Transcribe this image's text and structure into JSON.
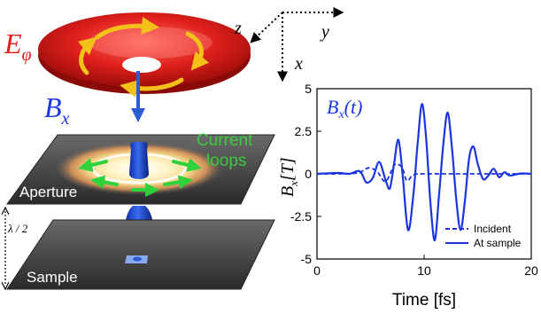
{
  "labels": {
    "e_phi_main": "E",
    "e_phi_sub": "φ",
    "b_x_main": "B",
    "b_x_sub": "x",
    "current_loops_line1": "Current",
    "current_loops_line2": "loops",
    "aperture": "Aperture",
    "sample": "Sample",
    "lambda_half": "λ / 2"
  },
  "axes3d": {
    "z": "z",
    "y": "y",
    "x": "x"
  },
  "colors": {
    "e_field_red": "#e0201c",
    "arrow_yellow": "#f2c21a",
    "b_arrow_blue": "#2a5bd7",
    "current_green": "#2fd23a",
    "current_label_green": "#3acb3a",
    "plot_blue": "#1a35e0",
    "plane_dark": "#3a3a3a"
  },
  "chart_data": {
    "type": "line",
    "title": "B_x(t)",
    "title_main": "B",
    "title_sub": "x",
    "title_tail": "(t)",
    "xlabel": "Time [fs]",
    "ylabel_main": "B",
    "ylabel_sub": "x",
    "ylabel_tail": "[T]",
    "xlim": [
      0,
      20
    ],
    "ylim": [
      -5,
      5
    ],
    "xticks": [
      0,
      10,
      20
    ],
    "yticks": [
      5,
      2.5,
      0,
      -2.5,
      -5
    ],
    "ytick_labels": [
      "5",
      "2.5",
      "0",
      "-2.5",
      "-5"
    ],
    "xtick_labels": [
      "0",
      "10",
      "20"
    ],
    "legend_position": "bottom-right",
    "series": [
      {
        "name": "Incident",
        "style": "dashed",
        "x": [
          0,
          2,
          3,
          4,
          4.8,
          5.6,
          6.4,
          7.2,
          7.6,
          8.0,
          8.4,
          9,
          10,
          12,
          14,
          16,
          18,
          20
        ],
        "y": [
          0,
          0,
          0.02,
          0.08,
          0.35,
          0.15,
          -0.45,
          0.5,
          0.55,
          0.3,
          -0.4,
          -0.05,
          0,
          0,
          0,
          0,
          0,
          0
        ]
      },
      {
        "name": "At sample",
        "style": "solid",
        "x": [
          0,
          2,
          3,
          4,
          4.6,
          5.2,
          5.8,
          6.4,
          6.8,
          7.2,
          7.6,
          8.0,
          8.5,
          9.0,
          9.4,
          9.8,
          10.2,
          10.6,
          11.0,
          11.4,
          11.8,
          12.2,
          12.6,
          13.0,
          13.4,
          13.8,
          14.2,
          14.6,
          15.0,
          15.5,
          16,
          16.5,
          17,
          17.5,
          18,
          19,
          20
        ],
        "y": [
          0,
          0.05,
          0,
          0.15,
          -0.5,
          -0.25,
          0.7,
          -0.35,
          -0.85,
          0.6,
          2.0,
          -0.1,
          -3.3,
          -1.2,
          1.8,
          4.1,
          2.0,
          -1.8,
          -3.9,
          -1.2,
          1.8,
          3.6,
          1.5,
          -1.5,
          -3.3,
          -1.6,
          0.9,
          1.6,
          0.6,
          -0.3,
          -0.1,
          0.3,
          -0.2,
          0.1,
          -0.1,
          0.02,
          0
        ]
      }
    ]
  }
}
